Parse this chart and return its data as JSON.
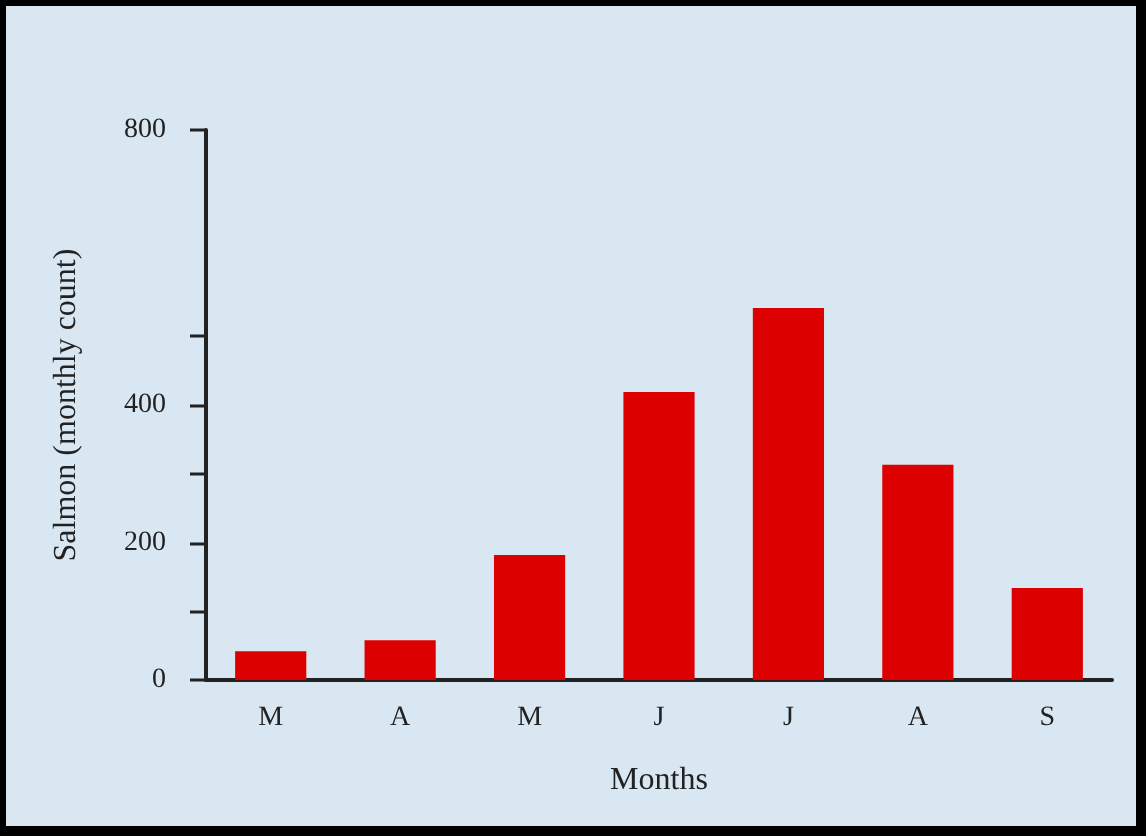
{
  "chart_data": {
    "type": "bar",
    "xlabel": "Months",
    "ylabel": "Salmon (monthly count)",
    "categories": [
      "M",
      "A",
      "M",
      "J",
      "J",
      "A",
      "S"
    ],
    "values": [
      42,
      58,
      182,
      419,
      541,
      313,
      134
    ],
    "color": "#dd0000",
    "ylim": [
      0,
      800
    ],
    "yticks": [
      0,
      {
        "value": 100,
        "label": null
      },
      200,
      {
        "value": 300,
        "label": null
      },
      400,
      {
        "value": 500,
        "label": null
      },
      800
    ],
    "grid": false
  }
}
